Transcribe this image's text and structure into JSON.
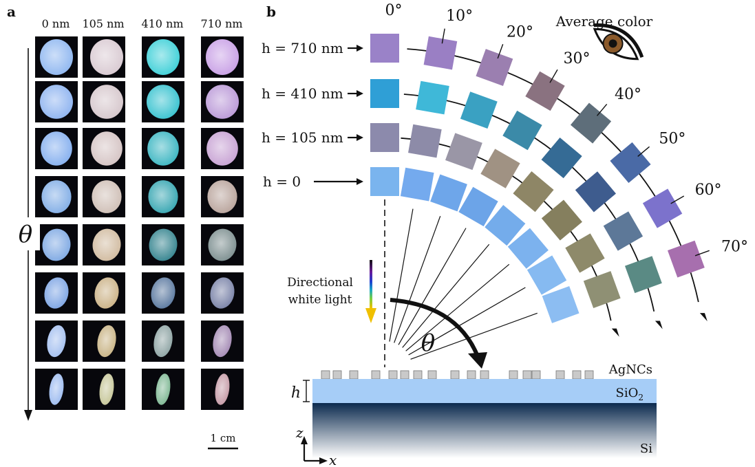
{
  "panel_a": {
    "label": "a",
    "columns": [
      {
        "label": "0 nm",
        "tint": "#8fb7f0"
      },
      {
        "label": "105 nm",
        "tint": "#d8c9cf"
      },
      {
        "label": "410 nm",
        "tint": "#4fc3cf"
      },
      {
        "label": "710 nm",
        "tint": "#c8a0e0"
      }
    ],
    "row_tints": [
      [
        "#8fb7f0",
        "#d9cad2",
        "#3fd0d8",
        "#c9a1e6"
      ],
      [
        "#8fb4f0",
        "#d6c7cc",
        "#39c3d0",
        "#bb9ad8"
      ],
      [
        "#86b0ef",
        "#d5c4c4",
        "#3cb6c2",
        "#c8a3d4"
      ],
      [
        "#82aee6",
        "#cfbfb6",
        "#37a6b2",
        "#b9a49c"
      ],
      [
        "#7fa9e3",
        "#d1bba0",
        "#35848f",
        "#7d8f90"
      ],
      [
        "#7ea5e4",
        "#cbb287",
        "#5b79a0",
        "#7a83a8"
      ],
      [
        "#a5c0f0",
        "#c9b486",
        "#8ea4a4",
        "#a48ab4"
      ],
      [
        "#9ebcf0",
        "#c7c79a",
        "#7fb894",
        "#c59aa6"
      ]
    ],
    "axis_symbol": "θ",
    "scale_bar": "1 cm"
  },
  "panel_b": {
    "label": "b",
    "title": "Average color",
    "angles": [
      "0°",
      "10°",
      "20°",
      "30°",
      "40°",
      "50°",
      "60°",
      "70°"
    ],
    "rows": [
      {
        "label": "h = 710 nm",
        "colors": [
          "#9a82c8",
          "#9a7fc4",
          "#9b7fb0",
          "#8a7280",
          "#5e6e7a",
          "#4a6aa6",
          "#7c72cc",
          "#a76fae"
        ]
      },
      {
        "label": "h = 410 nm",
        "colors": [
          "#2f9fd6",
          "#3fb8d8",
          "#3aa1c2",
          "#3b8aa8",
          "#356b95",
          "#3e5c8e",
          "#5d7898",
          "#5a8a84"
        ]
      },
      {
        "label": "h = 105 nm",
        "colors": [
          "#8c8aac",
          "#8d8ba8",
          "#9a96a6",
          "#a09283",
          "#8e8666",
          "#857f5e",
          "#8e8a6a",
          "#8f9074"
        ]
      },
      {
        "label": "h = 0",
        "colors": [
          "#7ab4ee",
          "#74aaee",
          "#6ea6ea",
          "#6ca4e8",
          "#74aceb",
          "#7cb2ee",
          "#86baf1",
          "#8cbdf2"
        ]
      }
    ],
    "light_label": [
      "Directional",
      "white light"
    ],
    "theta_symbol": "θ",
    "layers": {
      "particles": "AgNCs",
      "oxide": "SiO2",
      "oxide_main": "SiO",
      "oxide_sub": "2",
      "substrate": "Si",
      "thickness": "h"
    },
    "axes": {
      "z": "z",
      "x": "x"
    },
    "colors": {
      "oxide": "#a6cdf7",
      "silicon_top": "#0b2a4e",
      "silicon_bottom": "#ffffff",
      "particle": "#c9c9c9"
    }
  }
}
